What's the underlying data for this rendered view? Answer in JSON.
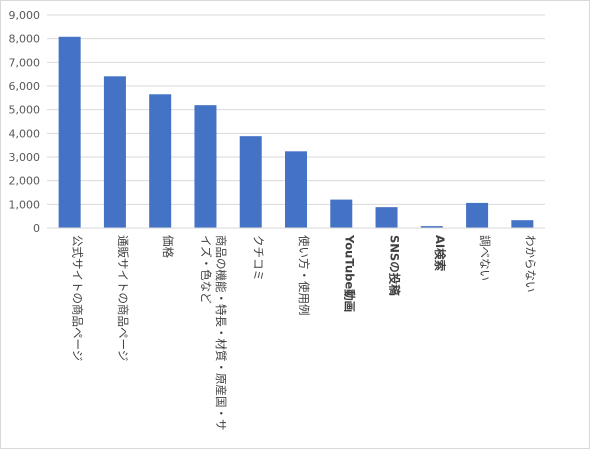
{
  "chart_data": {
    "type": "bar",
    "title": "",
    "xlabel": "",
    "ylabel": "",
    "ylim": [
      0,
      9000
    ],
    "ytick_step": 1000,
    "ytick_labels": [
      "0",
      "1,000",
      "2,000",
      "3,000",
      "4,000",
      "5,000",
      "6,000",
      "7,000",
      "8,000",
      "9,000"
    ],
    "grid": true,
    "legend": "none",
    "bar_color": "#4472c4",
    "grid_color": "#d9d9d9",
    "categories": [
      {
        "label_lines": [
          "公式サイトの商品ページ"
        ],
        "bold_latin": false
      },
      {
        "label_lines": [
          "通販サイトの商品ページ"
        ],
        "bold_latin": false
      },
      {
        "label_lines": [
          "価格"
        ],
        "bold_latin": false
      },
      {
        "label_lines": [
          "商品の機能・特長・材質・原産国・サ",
          "イズ・色など"
        ],
        "bold_latin": false
      },
      {
        "label_lines": [
          "クチコミ"
        ],
        "bold_latin": false
      },
      {
        "label_lines": [
          "使い方・使用例"
        ],
        "bold_latin": false
      },
      {
        "label_lines": [
          "YouTube動画"
        ],
        "bold_latin": true
      },
      {
        "label_lines": [
          "SNSの投稿"
        ],
        "bold_latin": true
      },
      {
        "label_lines": [
          "AI検索"
        ],
        "bold_latin": true
      },
      {
        "label_lines": [
          "調べない"
        ],
        "bold_latin": false
      },
      {
        "label_lines": [
          "わからない"
        ],
        "bold_latin": false
      }
    ],
    "values": [
      8080,
      6410,
      5650,
      5190,
      3880,
      3240,
      1200,
      880,
      80,
      1060,
      330
    ]
  }
}
